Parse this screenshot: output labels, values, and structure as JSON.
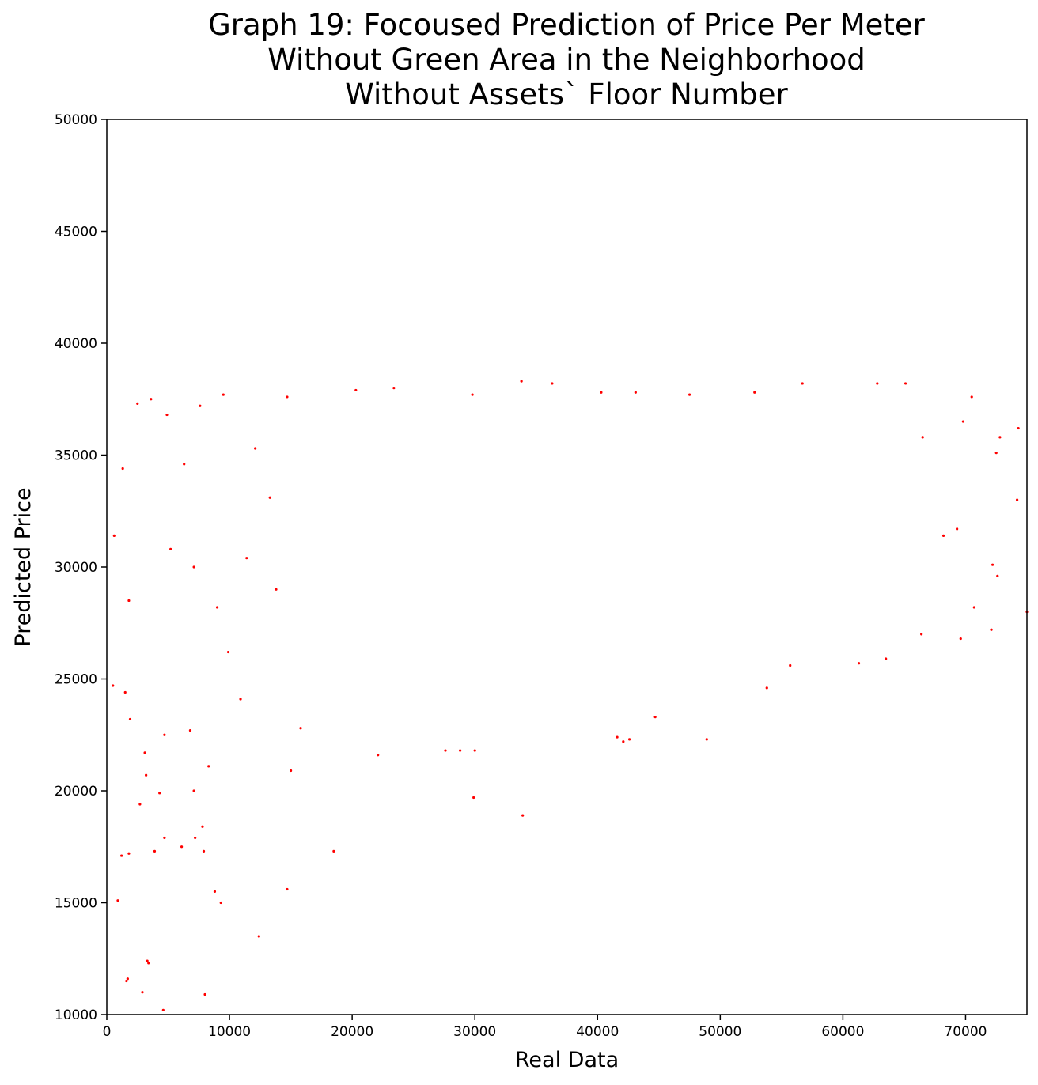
{
  "chart_data": {
    "type": "scatter",
    "title": "Graph 19: Focoused Prediction of Price Per Meter\nWithout Green Area in the Neighborhood\nWithout Assets` Floor Number",
    "xlabel": "Real Data",
    "ylabel": "Predicted Price",
    "xlim": [
      0,
      75000
    ],
    "ylim": [
      10000,
      50000
    ],
    "x_ticks": [
      0,
      10000,
      20000,
      30000,
      40000,
      50000,
      60000,
      70000
    ],
    "y_ticks": [
      10000,
      15000,
      20000,
      25000,
      30000,
      35000,
      40000,
      45000,
      50000
    ],
    "grid": false,
    "marker_color": "#ff0000",
    "series": [
      {
        "points": [
          [
            900,
            15100
          ],
          [
            1700,
            11600
          ],
          [
            1600,
            11500
          ],
          [
            3300,
            12400
          ],
          [
            3400,
            12300
          ],
          [
            2900,
            11000
          ],
          [
            4600,
            10200
          ],
          [
            8000,
            10900
          ],
          [
            12400,
            13500
          ],
          [
            14700,
            15600
          ],
          [
            8800,
            15500
          ],
          [
            9300,
            15000
          ],
          [
            1200,
            17100
          ],
          [
            1800,
            17200
          ],
          [
            3900,
            17300
          ],
          [
            4700,
            17900
          ],
          [
            6100,
            17500
          ],
          [
            7200,
            17900
          ],
          [
            7900,
            17300
          ],
          [
            18500,
            17300
          ],
          [
            7800,
            18400
          ],
          [
            2700,
            19400
          ],
          [
            4300,
            19900
          ],
          [
            7100,
            20000
          ],
          [
            15000,
            20900
          ],
          [
            3200,
            20700
          ],
          [
            8300,
            21100
          ],
          [
            3100,
            21700
          ],
          [
            22100,
            21600
          ],
          [
            27600,
            21800
          ],
          [
            28800,
            21800
          ],
          [
            30000,
            21800
          ],
          [
            29900,
            19700
          ],
          [
            33900,
            18900
          ],
          [
            4700,
            22500
          ],
          [
            6800,
            22700
          ],
          [
            15800,
            22800
          ],
          [
            41600,
            22400
          ],
          [
            42100,
            22200
          ],
          [
            42600,
            22300
          ],
          [
            44700,
            23300
          ],
          [
            48900,
            22300
          ],
          [
            53800,
            24600
          ],
          [
            55700,
            25600
          ],
          [
            61300,
            25700
          ],
          [
            63500,
            25900
          ],
          [
            66400,
            27000
          ],
          [
            69600,
            26800
          ],
          [
            72100,
            27200
          ],
          [
            75000,
            28000
          ],
          [
            70700,
            28200
          ],
          [
            72600,
            29600
          ],
          [
            72200,
            30100
          ],
          [
            68200,
            31400
          ],
          [
            69300,
            31700
          ],
          [
            74200,
            33000
          ],
          [
            72500,
            35100
          ],
          [
            72800,
            35800
          ],
          [
            74300,
            36200
          ],
          [
            70500,
            37600
          ],
          [
            69800,
            36500
          ],
          [
            66500,
            35800
          ],
          [
            65100,
            38200
          ],
          [
            62800,
            38200
          ],
          [
            56700,
            38200
          ],
          [
            52800,
            37800
          ],
          [
            47500,
            37700
          ],
          [
            43100,
            37800
          ],
          [
            40300,
            37800
          ],
          [
            36300,
            38200
          ],
          [
            33800,
            38300
          ],
          [
            29800,
            37700
          ],
          [
            23400,
            38000
          ],
          [
            20300,
            37900
          ],
          [
            14700,
            37600
          ],
          [
            9500,
            37700
          ],
          [
            7600,
            37200
          ],
          [
            4900,
            36800
          ],
          [
            3600,
            37500
          ],
          [
            2500,
            37300
          ],
          [
            1300,
            34400
          ],
          [
            600,
            31400
          ],
          [
            1800,
            28500
          ],
          [
            500,
            24700
          ],
          [
            1900,
            23200
          ],
          [
            1500,
            24400
          ],
          [
            5200,
            30800
          ],
          [
            6300,
            34600
          ],
          [
            7100,
            30000
          ],
          [
            9000,
            28200
          ],
          [
            9900,
            26200
          ],
          [
            10900,
            24100
          ],
          [
            11400,
            30400
          ],
          [
            12100,
            35300
          ],
          [
            13300,
            33100
          ],
          [
            13800,
            29000
          ]
        ]
      }
    ]
  }
}
